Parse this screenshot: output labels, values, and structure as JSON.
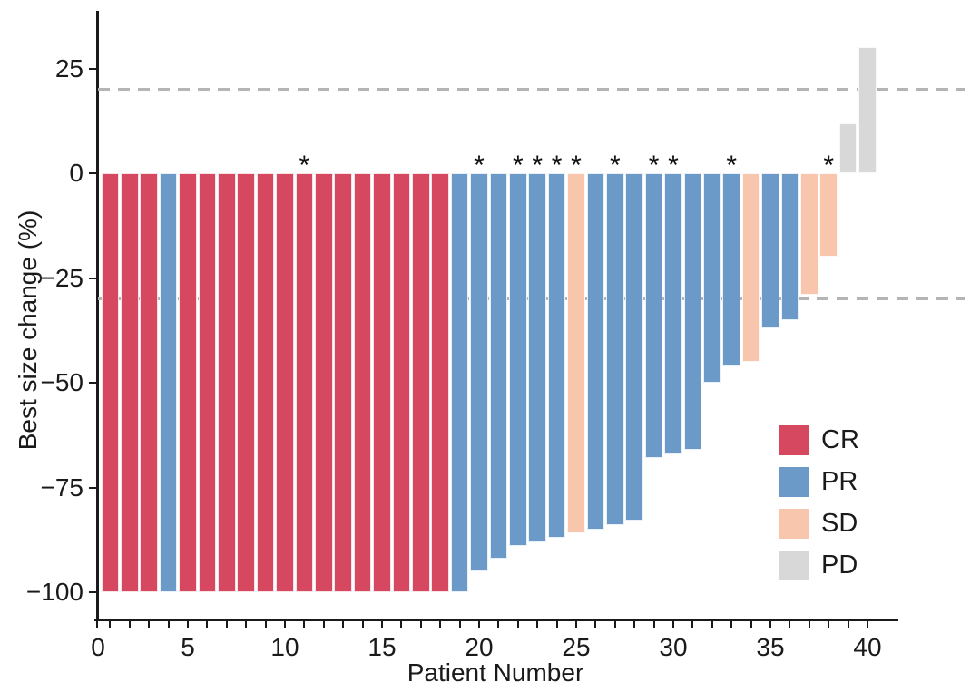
{
  "figure_background": "#ffffff",
  "chart_data": {
    "type": "bar",
    "subtype": "waterfall",
    "title": "",
    "xlabel": "Patient Number",
    "ylabel": "Best size change (%)",
    "xlim": [
      0,
      41
    ],
    "ylim": [
      -107,
      39
    ],
    "grid": "off",
    "x_major_ticks": [
      0,
      5,
      10,
      15,
      20,
      25,
      30,
      35,
      40
    ],
    "x_tick_labels": [
      "0",
      "5",
      "10",
      "15",
      "20",
      "25",
      "30",
      "35",
      "40"
    ],
    "x_minor_tick_every": 1,
    "y_ticks": [
      25,
      0,
      -25,
      -50,
      -75,
      -100
    ],
    "y_tick_labels": [
      "25",
      "0",
      "−25",
      "−50",
      "−75",
      "−100"
    ],
    "reference_lines": {
      "upper": 20,
      "lower": -30,
      "style": "dashed",
      "color": "#b4b4b4"
    },
    "annotation_symbol": "*",
    "legend": {
      "position": "inside-right-bottom",
      "entries": [
        {
          "label": "CR",
          "color": "#d5485f"
        },
        {
          "label": "PR",
          "color": "#6b9ac9"
        },
        {
          "label": "SD",
          "color": "#f8c6ac"
        },
        {
          "label": "PD",
          "color": "#d8d8d8"
        }
      ]
    },
    "patients": [
      {
        "n": 1,
        "response": "CR",
        "value": -100,
        "sig": false
      },
      {
        "n": 2,
        "response": "CR",
        "value": -100,
        "sig": false
      },
      {
        "n": 3,
        "response": "CR",
        "value": -100,
        "sig": false
      },
      {
        "n": 4,
        "response": "PR",
        "value": -100,
        "sig": false
      },
      {
        "n": 5,
        "response": "CR",
        "value": -100,
        "sig": false
      },
      {
        "n": 6,
        "response": "CR",
        "value": -100,
        "sig": false
      },
      {
        "n": 7,
        "response": "CR",
        "value": -100,
        "sig": false
      },
      {
        "n": 8,
        "response": "CR",
        "value": -100,
        "sig": false
      },
      {
        "n": 9,
        "response": "CR",
        "value": -100,
        "sig": false
      },
      {
        "n": 10,
        "response": "CR",
        "value": -100,
        "sig": false
      },
      {
        "n": 11,
        "response": "CR",
        "value": -100,
        "sig": true
      },
      {
        "n": 12,
        "response": "CR",
        "value": -100,
        "sig": false
      },
      {
        "n": 13,
        "response": "CR",
        "value": -100,
        "sig": false
      },
      {
        "n": 14,
        "response": "CR",
        "value": -100,
        "sig": false
      },
      {
        "n": 15,
        "response": "CR",
        "value": -100,
        "sig": false
      },
      {
        "n": 16,
        "response": "CR",
        "value": -100,
        "sig": false
      },
      {
        "n": 17,
        "response": "CR",
        "value": -100,
        "sig": false
      },
      {
        "n": 18,
        "response": "CR",
        "value": -100,
        "sig": false
      },
      {
        "n": 19,
        "response": "PR",
        "value": -100,
        "sig": false
      },
      {
        "n": 20,
        "response": "PR",
        "value": -95,
        "sig": true
      },
      {
        "n": 21,
        "response": "PR",
        "value": -92,
        "sig": false
      },
      {
        "n": 22,
        "response": "PR",
        "value": -89,
        "sig": true
      },
      {
        "n": 23,
        "response": "PR",
        "value": -88,
        "sig": true
      },
      {
        "n": 24,
        "response": "PR",
        "value": -87,
        "sig": true
      },
      {
        "n": 25,
        "response": "SD",
        "value": -86,
        "sig": true
      },
      {
        "n": 26,
        "response": "PR",
        "value": -85,
        "sig": false
      },
      {
        "n": 27,
        "response": "PR",
        "value": -84,
        "sig": true
      },
      {
        "n": 28,
        "response": "PR",
        "value": -83,
        "sig": false
      },
      {
        "n": 29,
        "response": "PR",
        "value": -68,
        "sig": true
      },
      {
        "n": 30,
        "response": "PR",
        "value": -67,
        "sig": true
      },
      {
        "n": 31,
        "response": "PR",
        "value": -66,
        "sig": false
      },
      {
        "n": 32,
        "response": "PR",
        "value": -50,
        "sig": false
      },
      {
        "n": 33,
        "response": "PR",
        "value": -46,
        "sig": true
      },
      {
        "n": 34,
        "response": "SD",
        "value": -45,
        "sig": false
      },
      {
        "n": 35,
        "response": "PR",
        "value": -37,
        "sig": false
      },
      {
        "n": 36,
        "response": "PR",
        "value": -35,
        "sig": false
      },
      {
        "n": 37,
        "response": "SD",
        "value": -29,
        "sig": false
      },
      {
        "n": 38,
        "response": "SD",
        "value": -20,
        "sig": true
      },
      {
        "n": 39,
        "response": "PD",
        "value": 12,
        "sig": false
      },
      {
        "n": 40,
        "response": "PD",
        "value": 30,
        "sig": false
      }
    ]
  }
}
